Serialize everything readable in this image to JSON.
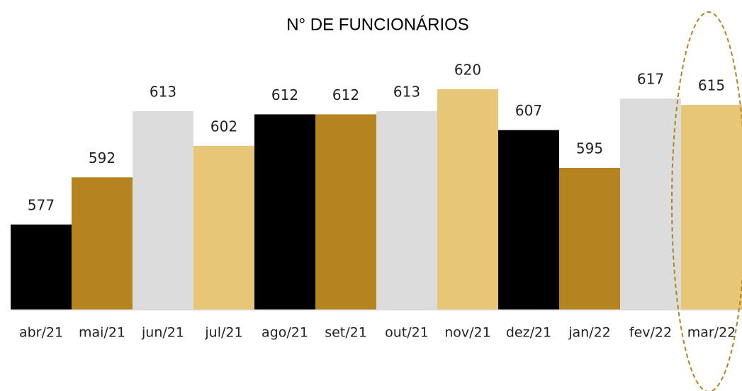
{
  "chart_data": {
    "type": "bar",
    "title": "N° DE FUNCIONÁRIOS",
    "categories": [
      "abr/21",
      "mai/21",
      "jun/21",
      "jul/21",
      "ago/21",
      "set/21",
      "out/21",
      "nov/21",
      "dez/21",
      "jan/22",
      "fev/22",
      "mar/22"
    ],
    "values": [
      577,
      592,
      613,
      602,
      612,
      612,
      613,
      620,
      607,
      595,
      617,
      615
    ],
    "colors": [
      "#000000",
      "#b5841f",
      "#dcdcdc",
      "#e8c677",
      "#000000",
      "#b5841f",
      "#dcdcdc",
      "#e8c677",
      "#000000",
      "#b5841f",
      "#dcdcdc",
      "#e8c677"
    ],
    "ylim": [
      550,
      640
    ]
  }
}
